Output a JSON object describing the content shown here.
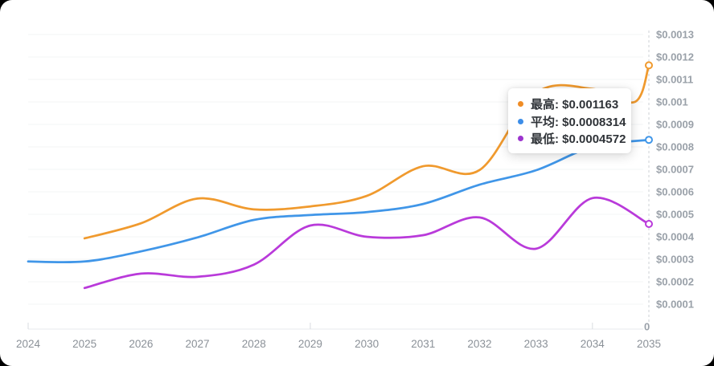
{
  "chart_data": {
    "type": "line",
    "title": "",
    "xlabel": "",
    "ylabel": "",
    "x_range": [
      2024,
      2035
    ],
    "y_range": [
      0,
      0.0013
    ],
    "x_labels": [
      "2024",
      "2025",
      "2026",
      "2027",
      "2028",
      "2029",
      "2030",
      "2031",
      "2032",
      "2033",
      "2034",
      "2035"
    ],
    "y_ticks": [
      {
        "value": 0.0013,
        "label": "$0.0013"
      },
      {
        "value": 0.0012,
        "label": "$0.0012"
      },
      {
        "value": 0.0011,
        "label": "$0.0011"
      },
      {
        "value": 0.001,
        "label": "$0.001"
      },
      {
        "value": 0.0009,
        "label": "$0.0009"
      },
      {
        "value": 0.0008,
        "label": "$0.0008"
      },
      {
        "value": 0.0007,
        "label": "$0.0007"
      },
      {
        "value": 0.0006,
        "label": "$0.0006"
      },
      {
        "value": 0.0005,
        "label": "$0.0005"
      },
      {
        "value": 0.0004,
        "label": "$0.0004"
      },
      {
        "value": 0.0003,
        "label": "$0.0003"
      },
      {
        "value": 0.0002,
        "label": "$0.0002"
      },
      {
        "value": 0.0001,
        "label": "$0.0001"
      },
      {
        "value": 0,
        "label": "0"
      }
    ],
    "grid": true,
    "smooth": true,
    "y_axis_position": "right",
    "y_axis_style": "dashed",
    "series": [
      {
        "key": "high",
        "name": "最高",
        "color": "#f09a2e",
        "points": [
          [
            2025,
            0.000393
          ],
          [
            2026,
            0.00046
          ],
          [
            2027,
            0.00057
          ],
          [
            2028,
            0.000522
          ],
          [
            2029,
            0.000535
          ],
          [
            2030,
            0.000582
          ],
          [
            2031,
            0.000714
          ],
          [
            2032,
            0.000697
          ],
          [
            2033,
            0.00104
          ],
          [
            2034,
            0.001058
          ],
          [
            2034.75,
            0.001
          ],
          [
            2035,
            0.001163
          ]
        ]
      },
      {
        "key": "average",
        "name": "平均",
        "color": "#4096e8",
        "points": [
          [
            2024,
            0.00029
          ],
          [
            2025,
            0.00029
          ],
          [
            2026,
            0.000335
          ],
          [
            2027,
            0.000397
          ],
          [
            2028,
            0.000475
          ],
          [
            2029,
            0.000497
          ],
          [
            2030,
            0.00051
          ],
          [
            2031,
            0.000546
          ],
          [
            2032,
            0.000632
          ],
          [
            2033,
            0.000696
          ],
          [
            2034,
            0.0008
          ],
          [
            2035,
            0.0008314
          ]
        ]
      },
      {
        "key": "low",
        "name": "最低",
        "color": "#b93ada",
        "points": [
          [
            2025,
            0.000172
          ],
          [
            2026,
            0.000236
          ],
          [
            2027,
            0.000222
          ],
          [
            2028,
            0.000276
          ],
          [
            2029,
            0.00045
          ],
          [
            2030,
            0.0004
          ],
          [
            2031,
            0.000407
          ],
          [
            2032,
            0.000486
          ],
          [
            2033,
            0.000347
          ],
          [
            2034,
            0.000572
          ],
          [
            2035,
            0.0004572
          ]
        ]
      }
    ],
    "end_values": {
      "high": "$0.001163",
      "average": "$0.0008314",
      "low": "$0.0004572"
    }
  },
  "tooltip": {
    "rows": [
      {
        "key": "high",
        "text": "最高: $0.001163",
        "color": "#ef8c25"
      },
      {
        "key": "average",
        "text": "平均: $0.0008314",
        "color": "#3c8de8"
      },
      {
        "key": "low",
        "text": "最低: $0.0004572",
        "color": "#9c34ce"
      }
    ]
  },
  "colors": {
    "high_line": "#f09a2e",
    "average_line": "#4096e8",
    "low_line": "#b93ada",
    "grid_line": "#f3f4f5",
    "axis_line": "#e7e9ec",
    "axis_dashed": "#ccd0d6",
    "x_label_text": "#8b9198",
    "y_label_text": "#9aa1a9",
    "tooltip_text": "#2f3338"
  }
}
